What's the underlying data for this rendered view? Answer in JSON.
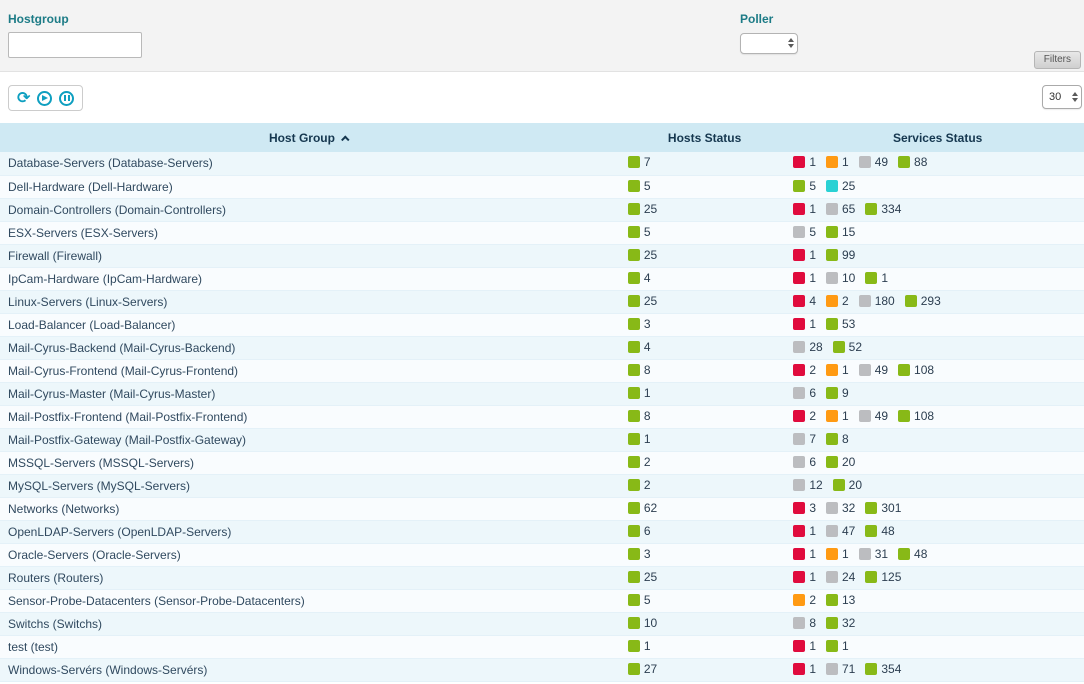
{
  "filters": {
    "hostgroup": {
      "label": "Hostgroup",
      "value": ""
    },
    "poller": {
      "label": "Poller",
      "value": ""
    },
    "filters_tab": "Filters"
  },
  "toolbar": {
    "page_size": "30"
  },
  "status_colors": {
    "green": "#88b917",
    "red": "#e00b3d",
    "orange": "#ff9a13",
    "gray": "#bcbdc0",
    "cyan": "#2ad1d4"
  },
  "table": {
    "columns": {
      "host_group": "Host Group",
      "hosts_status": "Hosts Status",
      "services_status": "Services Status"
    },
    "rows": [
      {
        "name": "Database-Servers (Database-Servers)",
        "hosts": [
          {
            "color": "green",
            "count": "7"
          }
        ],
        "services": [
          {
            "color": "red",
            "count": "1"
          },
          {
            "color": "orange",
            "count": "1"
          },
          {
            "color": "gray",
            "count": "49"
          },
          {
            "color": "green",
            "count": "88"
          }
        ]
      },
      {
        "name": "Dell-Hardware (Dell-Hardware)",
        "hosts": [
          {
            "color": "green",
            "count": "5"
          }
        ],
        "services": [
          {
            "color": "green",
            "count": "5"
          },
          {
            "color": "cyan",
            "count": "25"
          }
        ]
      },
      {
        "name": "Domain-Controllers (Domain-Controllers)",
        "hosts": [
          {
            "color": "green",
            "count": "25"
          }
        ],
        "services": [
          {
            "color": "red",
            "count": "1"
          },
          {
            "color": "gray",
            "count": "65"
          },
          {
            "color": "green",
            "count": "334"
          }
        ]
      },
      {
        "name": "ESX-Servers (ESX-Servers)",
        "hosts": [
          {
            "color": "green",
            "count": "5"
          }
        ],
        "services": [
          {
            "color": "gray",
            "count": "5"
          },
          {
            "color": "green",
            "count": "15"
          }
        ]
      },
      {
        "name": "Firewall (Firewall)",
        "hosts": [
          {
            "color": "green",
            "count": "25"
          }
        ],
        "services": [
          {
            "color": "red",
            "count": "1"
          },
          {
            "color": "green",
            "count": "99"
          }
        ]
      },
      {
        "name": "IpCam-Hardware (IpCam-Hardware)",
        "hosts": [
          {
            "color": "green",
            "count": "4"
          }
        ],
        "services": [
          {
            "color": "red",
            "count": "1"
          },
          {
            "color": "gray",
            "count": "10"
          },
          {
            "color": "green",
            "count": "1"
          }
        ]
      },
      {
        "name": "Linux-Servers (Linux-Servers)",
        "hosts": [
          {
            "color": "green",
            "count": "25"
          }
        ],
        "services": [
          {
            "color": "red",
            "count": "4"
          },
          {
            "color": "orange",
            "count": "2"
          },
          {
            "color": "gray",
            "count": "180"
          },
          {
            "color": "green",
            "count": "293"
          }
        ]
      },
      {
        "name": "Load-Balancer (Load-Balancer)",
        "hosts": [
          {
            "color": "green",
            "count": "3"
          }
        ],
        "services": [
          {
            "color": "red",
            "count": "1"
          },
          {
            "color": "green",
            "count": "53"
          }
        ]
      },
      {
        "name": "Mail-Cyrus-Backend (Mail-Cyrus-Backend)",
        "hosts": [
          {
            "color": "green",
            "count": "4"
          }
        ],
        "services": [
          {
            "color": "gray",
            "count": "28"
          },
          {
            "color": "green",
            "count": "52"
          }
        ]
      },
      {
        "name": "Mail-Cyrus-Frontend (Mail-Cyrus-Frontend)",
        "hosts": [
          {
            "color": "green",
            "count": "8"
          }
        ],
        "services": [
          {
            "color": "red",
            "count": "2"
          },
          {
            "color": "orange",
            "count": "1"
          },
          {
            "color": "gray",
            "count": "49"
          },
          {
            "color": "green",
            "count": "108"
          }
        ]
      },
      {
        "name": "Mail-Cyrus-Master (Mail-Cyrus-Master)",
        "hosts": [
          {
            "color": "green",
            "count": "1"
          }
        ],
        "services": [
          {
            "color": "gray",
            "count": "6"
          },
          {
            "color": "green",
            "count": "9"
          }
        ]
      },
      {
        "name": "Mail-Postfix-Frontend (Mail-Postfix-Frontend)",
        "hosts": [
          {
            "color": "green",
            "count": "8"
          }
        ],
        "services": [
          {
            "color": "red",
            "count": "2"
          },
          {
            "color": "orange",
            "count": "1"
          },
          {
            "color": "gray",
            "count": "49"
          },
          {
            "color": "green",
            "count": "108"
          }
        ]
      },
      {
        "name": "Mail-Postfix-Gateway (Mail-Postfix-Gateway)",
        "hosts": [
          {
            "color": "green",
            "count": "1"
          }
        ],
        "services": [
          {
            "color": "gray",
            "count": "7"
          },
          {
            "color": "green",
            "count": "8"
          }
        ]
      },
      {
        "name": "MSSQL-Servers (MSSQL-Servers)",
        "hosts": [
          {
            "color": "green",
            "count": "2"
          }
        ],
        "services": [
          {
            "color": "gray",
            "count": "6"
          },
          {
            "color": "green",
            "count": "20"
          }
        ]
      },
      {
        "name": "MySQL-Servers (MySQL-Servers)",
        "hosts": [
          {
            "color": "green",
            "count": "2"
          }
        ],
        "services": [
          {
            "color": "gray",
            "count": "12"
          },
          {
            "color": "green",
            "count": "20"
          }
        ]
      },
      {
        "name": "Networks (Networks)",
        "hosts": [
          {
            "color": "green",
            "count": "62"
          }
        ],
        "services": [
          {
            "color": "red",
            "count": "3"
          },
          {
            "color": "gray",
            "count": "32"
          },
          {
            "color": "green",
            "count": "301"
          }
        ]
      },
      {
        "name": "OpenLDAP-Servers (OpenLDAP-Servers)",
        "hosts": [
          {
            "color": "green",
            "count": "6"
          }
        ],
        "services": [
          {
            "color": "red",
            "count": "1"
          },
          {
            "color": "gray",
            "count": "47"
          },
          {
            "color": "green",
            "count": "48"
          }
        ]
      },
      {
        "name": "Oracle-Servers (Oracle-Servers)",
        "hosts": [
          {
            "color": "green",
            "count": "3"
          }
        ],
        "services": [
          {
            "color": "red",
            "count": "1"
          },
          {
            "color": "orange",
            "count": "1"
          },
          {
            "color": "gray",
            "count": "31"
          },
          {
            "color": "green",
            "count": "48"
          }
        ]
      },
      {
        "name": "Routers (Routers)",
        "hosts": [
          {
            "color": "green",
            "count": "25"
          }
        ],
        "services": [
          {
            "color": "red",
            "count": "1"
          },
          {
            "color": "gray",
            "count": "24"
          },
          {
            "color": "green",
            "count": "125"
          }
        ]
      },
      {
        "name": "Sensor-Probe-Datacenters (Sensor-Probe-Datacenters)",
        "hosts": [
          {
            "color": "green",
            "count": "5"
          }
        ],
        "services": [
          {
            "color": "orange",
            "count": "2"
          },
          {
            "color": "green",
            "count": "13"
          }
        ]
      },
      {
        "name": "Switchs (Switchs)",
        "hosts": [
          {
            "color": "green",
            "count": "10"
          }
        ],
        "services": [
          {
            "color": "gray",
            "count": "8"
          },
          {
            "color": "green",
            "count": "32"
          }
        ]
      },
      {
        "name": "test (test)",
        "hosts": [
          {
            "color": "green",
            "count": "1"
          }
        ],
        "services": [
          {
            "color": "red",
            "count": "1"
          },
          {
            "color": "green",
            "count": "1"
          }
        ]
      },
      {
        "name": "Windows-Servérs (Windows-Servérs)",
        "hosts": [
          {
            "color": "green",
            "count": "27"
          }
        ],
        "services": [
          {
            "color": "red",
            "count": "1"
          },
          {
            "color": "gray",
            "count": "71"
          },
          {
            "color": "green",
            "count": "354"
          }
        ]
      }
    ]
  }
}
